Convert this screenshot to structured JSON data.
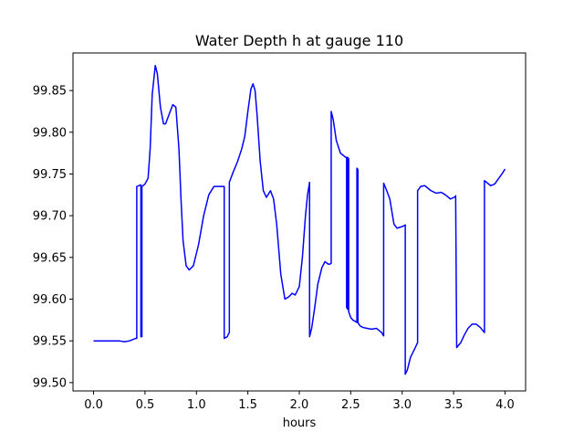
{
  "chart_data": {
    "type": "line",
    "title": "Water Depth h at gauge 110",
    "xlabel": "hours",
    "ylabel": "",
    "xlim": [
      -0.2,
      4.2
    ],
    "ylim": [
      99.49,
      99.895
    ],
    "xticks": [
      0.0,
      0.5,
      1.0,
      1.5,
      2.0,
      2.5,
      3.0,
      3.5,
      4.0
    ],
    "xtick_labels": [
      "0.0",
      "0.5",
      "1.0",
      "1.5",
      "2.0",
      "2.5",
      "3.0",
      "3.5",
      "4.0"
    ],
    "yticks": [
      99.5,
      99.55,
      99.6,
      99.65,
      99.7,
      99.75,
      99.8,
      99.85
    ],
    "ytick_labels": [
      "99.50",
      "99.55",
      "99.60",
      "99.65",
      "99.70",
      "99.75",
      "99.80",
      "99.85"
    ],
    "grid": false,
    "series": [
      {
        "color": "#0000ff",
        "x": [
          0.0,
          0.25,
          0.3,
          0.35,
          0.41,
          0.42,
          0.42,
          0.46,
          0.46,
          0.47,
          0.47,
          0.5,
          0.53,
          0.55,
          0.57,
          0.6,
          0.62,
          0.65,
          0.68,
          0.7,
          0.73,
          0.77,
          0.8,
          0.83,
          0.85,
          0.87,
          0.9,
          0.93,
          0.97,
          1.02,
          1.07,
          1.12,
          1.17,
          1.22,
          1.25,
          1.27,
          1.27,
          1.3,
          1.31,
          1.32,
          1.32,
          1.35,
          1.4,
          1.44,
          1.47,
          1.5,
          1.53,
          1.55,
          1.57,
          1.59,
          1.62,
          1.65,
          1.68,
          1.72,
          1.75,
          1.78,
          1.82,
          1.86,
          1.9,
          1.93,
          1.96,
          2.0,
          2.03,
          2.06,
          2.08,
          2.1,
          2.1,
          2.12,
          2.15,
          2.18,
          2.22,
          2.25,
          2.28,
          2.3,
          2.31,
          2.31,
          2.33,
          2.36,
          2.4,
          2.45,
          2.46,
          2.46,
          2.47,
          2.47,
          2.48,
          2.48,
          2.5,
          2.52,
          2.55,
          2.56,
          2.56,
          2.57,
          2.57,
          2.59,
          2.62,
          2.66,
          2.7,
          2.75,
          2.8,
          2.82,
          2.82,
          2.85,
          2.88,
          2.9,
          2.92,
          2.95,
          3.0,
          3.02,
          3.03,
          3.03,
          3.05,
          3.08,
          3.12,
          3.15,
          3.15,
          3.18,
          3.22,
          3.28,
          3.33,
          3.38,
          3.42,
          3.47,
          3.52,
          3.52,
          3.53,
          3.57,
          3.6,
          3.64,
          3.68,
          3.72,
          3.76,
          3.8,
          3.8,
          3.82,
          3.86,
          3.9,
          3.94,
          3.97,
          4.0
        ],
        "y": [
          99.55,
          99.55,
          99.549,
          99.55,
          99.553,
          99.553,
          99.735,
          99.737,
          99.555,
          99.555,
          99.735,
          99.738,
          99.745,
          99.78,
          99.845,
          99.88,
          99.87,
          99.83,
          99.81,
          99.81,
          99.82,
          99.833,
          99.83,
          99.78,
          99.72,
          99.67,
          99.64,
          99.635,
          99.64,
          99.665,
          99.7,
          99.725,
          99.735,
          99.735,
          99.735,
          99.735,
          99.553,
          99.555,
          99.558,
          99.56,
          99.74,
          99.75,
          99.765,
          99.78,
          99.795,
          99.825,
          99.852,
          99.858,
          99.85,
          99.82,
          99.765,
          99.73,
          99.722,
          99.73,
          99.72,
          99.69,
          99.63,
          99.6,
          99.603,
          99.607,
          99.605,
          99.615,
          99.65,
          99.7,
          99.725,
          99.74,
          99.555,
          99.565,
          99.59,
          99.618,
          99.638,
          99.645,
          99.642,
          99.642,
          99.643,
          99.825,
          99.815,
          99.79,
          99.775,
          99.77,
          99.77,
          99.59,
          99.588,
          99.77,
          99.768,
          99.585,
          99.578,
          99.575,
          99.573,
          99.572,
          99.757,
          99.755,
          99.572,
          99.568,
          99.566,
          99.565,
          99.564,
          99.565,
          99.56,
          99.556,
          99.739,
          99.73,
          99.72,
          99.705,
          99.69,
          99.685,
          99.687,
          99.688,
          99.689,
          99.51,
          99.515,
          99.53,
          99.54,
          99.548,
          99.73,
          99.735,
          99.736,
          99.73,
          99.727,
          99.728,
          99.725,
          99.72,
          99.723,
          99.724,
          99.542,
          99.548,
          99.556,
          99.565,
          99.57,
          99.57,
          99.566,
          99.56,
          99.742,
          99.74,
          99.736,
          99.738,
          99.745,
          99.75,
          99.756
        ]
      }
    ]
  }
}
